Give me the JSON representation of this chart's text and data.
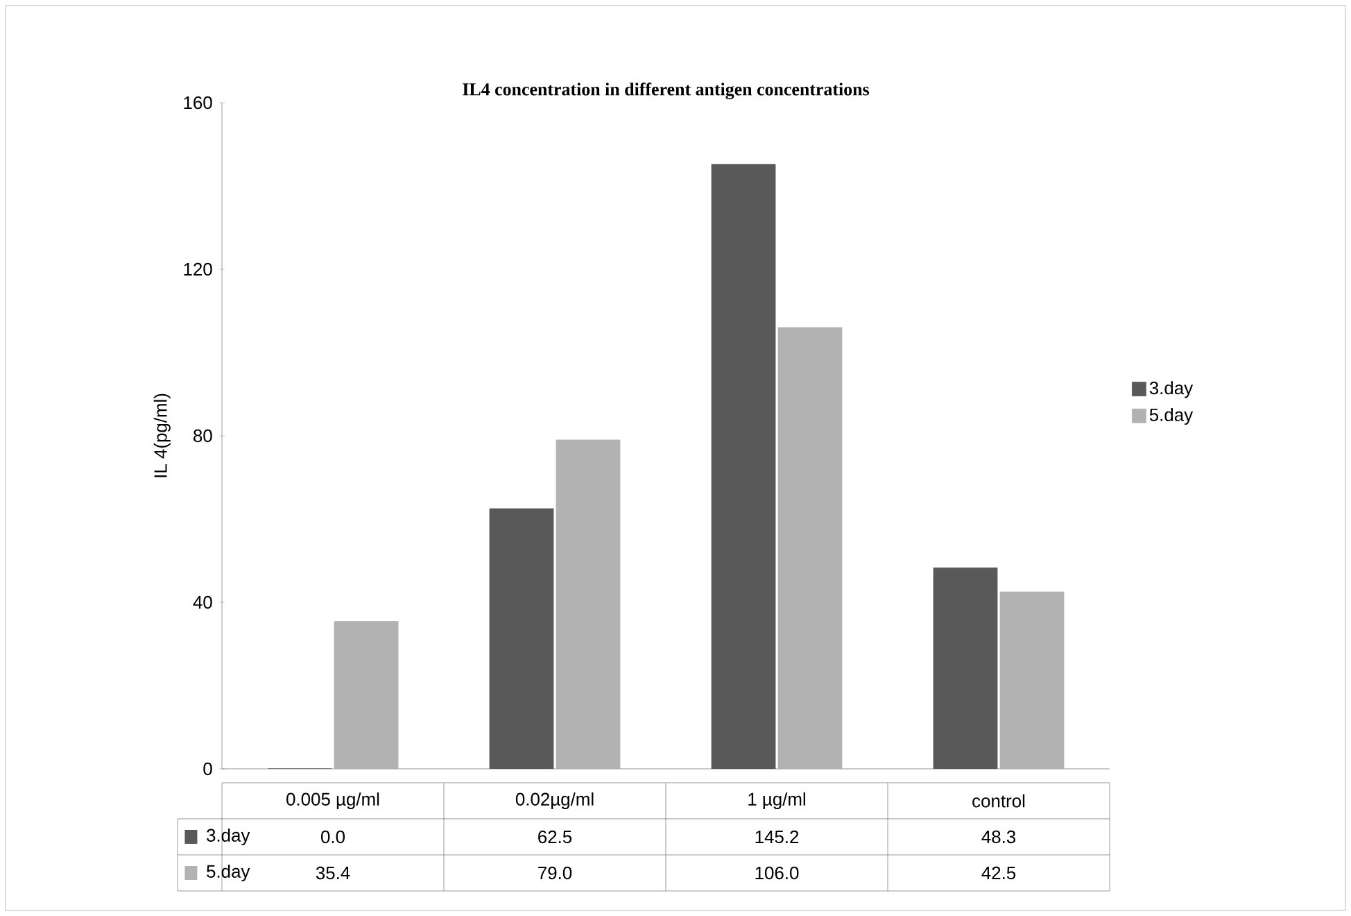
{
  "chart_data": {
    "type": "bar",
    "title": "IL4 concentration  in different antigen concentrations",
    "ylabel": "IL 4(pg/ml)",
    "categories": [
      "0.005 µg/ml",
      "0.02µg/ml",
      "1 µg/ml",
      "control"
    ],
    "series": [
      {
        "name": "3.day",
        "color": "#595959",
        "values": [
          0.0,
          62.5,
          145.2,
          48.3
        ],
        "value_labels": [
          "0.0",
          "62.5",
          "145.2",
          "48.3"
        ]
      },
      {
        "name": "5.day",
        "color": "#b2b2b2",
        "values": [
          35.4,
          79.0,
          106.0,
          42.5
        ],
        "value_labels": [
          "35.4",
          "79.0",
          "106.0",
          "42.5"
        ]
      }
    ],
    "ylim": [
      0,
      160
    ],
    "yticks": [
      0,
      40,
      80,
      120,
      160
    ],
    "grid": false,
    "legend": "right"
  }
}
